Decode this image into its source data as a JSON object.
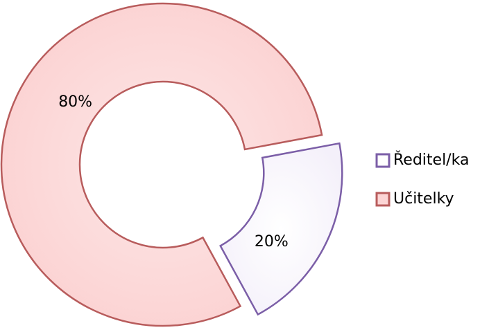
{
  "chart_data": {
    "type": "donut",
    "categories": [
      "Ředitel/ka",
      "Učitelky"
    ],
    "values": [
      20,
      80
    ],
    "value_labels": [
      "20%",
      "80%"
    ],
    "colors": [
      "#ffffff",
      "#fcd5d5"
    ],
    "edge_colors": [
      "#7b5ea7",
      "#b85c5c"
    ]
  }
}
